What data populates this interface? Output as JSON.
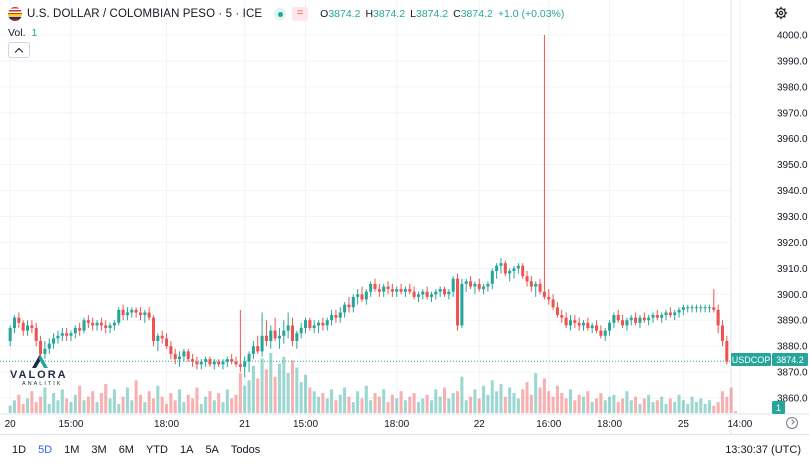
{
  "header": {
    "symbol_title": "U.S. DOLLAR / COLOMBIAN PESO · 5 · ICE",
    "eq_badge": "=",
    "ohlc": [
      {
        "label": "O",
        "value": "3874.2"
      },
      {
        "label": "H",
        "value": "3874.2"
      },
      {
        "label": "L",
        "value": "3874.2"
      },
      {
        "label": "C",
        "value": "3874.2"
      }
    ],
    "change": "+1.0 (+0.03%)"
  },
  "volume": {
    "label": "Vol.",
    "value": "1"
  },
  "logo": {
    "text": "VALORA",
    "sub": "ANALITIK"
  },
  "ranges": [
    "1D",
    "5D",
    "1M",
    "3M",
    "6M",
    "YTD",
    "1A",
    "5A",
    "Todos"
  ],
  "active_range": "5D",
  "clock": "13:30:37 (UTC)",
  "colors": {
    "up": "#26a69a",
    "down": "#ef5350",
    "grid": "#f0f3fa",
    "text": "#131722"
  },
  "chart_data": {
    "type": "candlestick",
    "symbol": "USDCOP",
    "last_price": 3874.2,
    "volume_last": 1,
    "ylim": [
      3855,
      4005
    ],
    "y_ticks": [
      3860,
      3870,
      3880,
      3890,
      3900,
      3910,
      3920,
      3930,
      3940,
      3950,
      3960,
      3970,
      3980,
      3990,
      4000
    ],
    "y_tick_labels": [
      "3860.0",
      "3870.0",
      "3880.0",
      "3890.0",
      "3900.0",
      "3910.0",
      "3920.0",
      "3930.0",
      "3940.0",
      "3950.0",
      "3960.0",
      "3970.0",
      "3980.0",
      "3990.0",
      "4000.0"
    ],
    "x_tick_labels": [
      "20",
      "15:00",
      "18:00",
      "21",
      "15:00",
      "18:00",
      "22",
      "16:00",
      "18:00",
      "25",
      "14:00"
    ],
    "x_tick_index": [
      0,
      14,
      36,
      54,
      68,
      89,
      108,
      124,
      138,
      155,
      168
    ],
    "grid": true,
    "price": [
      [
        3882,
        3888,
        3880,
        3887
      ],
      [
        3887,
        3892,
        3885,
        3891
      ],
      [
        3891,
        3893,
        3887,
        3889
      ],
      [
        3889,
        3890,
        3884,
        3886
      ],
      [
        3886,
        3890,
        3884,
        3888
      ],
      [
        3888,
        3890,
        3885,
        3887
      ],
      [
        3887,
        3889,
        3880,
        3882
      ],
      [
        3882,
        3884,
        3875,
        3877
      ],
      [
        3877,
        3882,
        3875,
        3879
      ],
      [
        3879,
        3883,
        3877,
        3881
      ],
      [
        3881,
        3885,
        3879,
        3883
      ],
      [
        3883,
        3886,
        3881,
        3884
      ],
      [
        3884,
        3887,
        3882,
        3885
      ],
      [
        3885,
        3887,
        3882,
        3884
      ],
      [
        3884,
        3886,
        3882,
        3885
      ],
      [
        3885,
        3888,
        3883,
        3887
      ],
      [
        3887,
        3889,
        3884,
        3886
      ],
      [
        3886,
        3891,
        3885,
        3890
      ],
      [
        3890,
        3892,
        3887,
        3889
      ],
      [
        3889,
        3891,
        3886,
        3888
      ],
      [
        3888,
        3890,
        3886,
        3889
      ],
      [
        3889,
        3891,
        3886,
        3888
      ],
      [
        3888,
        3890,
        3885,
        3887
      ],
      [
        3887,
        3889,
        3885,
        3888
      ],
      [
        3888,
        3890,
        3886,
        3889
      ],
      [
        3889,
        3895,
        3888,
        3894
      ],
      [
        3894,
        3896,
        3890,
        3892
      ],
      [
        3892,
        3895,
        3890,
        3893
      ],
      [
        3893,
        3895,
        3891,
        3894
      ],
      [
        3894,
        3895,
        3891,
        3893
      ],
      [
        3893,
        3895,
        3890,
        3892
      ],
      [
        3892,
        3894,
        3889,
        3893
      ],
      [
        3893,
        3895,
        3890,
        3891
      ],
      [
        3891,
        3892,
        3880,
        3882
      ],
      [
        3882,
        3885,
        3878,
        3884
      ],
      [
        3884,
        3886,
        3881,
        3883
      ],
      [
        3883,
        3885,
        3879,
        3880
      ],
      [
        3880,
        3882,
        3875,
        3877
      ],
      [
        3877,
        3879,
        3873,
        3875
      ],
      [
        3875,
        3878,
        3872,
        3876
      ],
      [
        3876,
        3879,
        3874,
        3878
      ],
      [
        3878,
        3879,
        3874,
        3875
      ],
      [
        3875,
        3877,
        3872,
        3874
      ],
      [
        3874,
        3876,
        3871,
        3873
      ],
      [
        3873,
        3875,
        3871,
        3874
      ],
      [
        3874,
        3876,
        3872,
        3875
      ],
      [
        3875,
        3876,
        3872,
        3873
      ],
      [
        3873,
        3875,
        3871,
        3874
      ],
      [
        3874,
        3875,
        3872,
        3873
      ],
      [
        3873,
        3875,
        3871,
        3874
      ],
      [
        3874,
        3876,
        3872,
        3875
      ],
      [
        3875,
        3877,
        3873,
        3874
      ],
      [
        3874,
        3876,
        3872,
        3873
      ],
      [
        3873,
        3894,
        3870,
        3872
      ],
      [
        3872,
        3876,
        3868,
        3874
      ],
      [
        3874,
        3878,
        3870,
        3877
      ],
      [
        3877,
        3882,
        3875,
        3880
      ],
      [
        3880,
        3884,
        3877,
        3878
      ],
      [
        3878,
        3893,
        3876,
        3884
      ],
      [
        3884,
        3890,
        3880,
        3882
      ],
      [
        3882,
        3888,
        3879,
        3886
      ],
      [
        3886,
        3891,
        3882,
        3883
      ],
      [
        3883,
        3887,
        3879,
        3884
      ],
      [
        3884,
        3890,
        3881,
        3886
      ],
      [
        3886,
        3893,
        3883,
        3888
      ],
      [
        3888,
        3891,
        3880,
        3882
      ],
      [
        3882,
        3886,
        3879,
        3885
      ],
      [
        3885,
        3889,
        3883,
        3887
      ],
      [
        3887,
        3891,
        3885,
        3890
      ],
      [
        3890,
        3891,
        3886,
        3887
      ],
      [
        3887,
        3890,
        3885,
        3888
      ],
      [
        3888,
        3890,
        3885,
        3889
      ],
      [
        3889,
        3891,
        3886,
        3888
      ],
      [
        3888,
        3891,
        3886,
        3890
      ],
      [
        3890,
        3894,
        3888,
        3892
      ],
      [
        3892,
        3894,
        3889,
        3891
      ],
      [
        3891,
        3895,
        3889,
        3893
      ],
      [
        3893,
        3897,
        3891,
        3896
      ],
      [
        3896,
        3899,
        3893,
        3895
      ],
      [
        3895,
        3900,
        3893,
        3899
      ],
      [
        3899,
        3902,
        3896,
        3900
      ],
      [
        3900,
        3903,
        3897,
        3898
      ],
      [
        3898,
        3902,
        3896,
        3901
      ],
      [
        3901,
        3905,
        3899,
        3904
      ],
      [
        3904,
        3906,
        3901,
        3902
      ],
      [
        3902,
        3904,
        3899,
        3901
      ],
      [
        3901,
        3904,
        3899,
        3903
      ],
      [
        3903,
        3905,
        3900,
        3902
      ],
      [
        3902,
        3904,
        3899,
        3901
      ],
      [
        3901,
        3903,
        3899,
        3902
      ],
      [
        3902,
        3904,
        3900,
        3901
      ],
      [
        3901,
        3903,
        3899,
        3902
      ],
      [
        3902,
        3904,
        3900,
        3901
      ],
      [
        3901,
        3903,
        3898,
        3899
      ],
      [
        3899,
        3901,
        3897,
        3900
      ],
      [
        3900,
        3902,
        3898,
        3901
      ],
      [
        3901,
        3903,
        3898,
        3899
      ],
      [
        3899,
        3901,
        3897,
        3900
      ],
      [
        3900,
        3902,
        3898,
        3901
      ],
      [
        3901,
        3903,
        3899,
        3902
      ],
      [
        3902,
        3903,
        3899,
        3900
      ],
      [
        3900,
        3902,
        3898,
        3901
      ],
      [
        3901,
        3907,
        3899,
        3906
      ],
      [
        3906,
        3908,
        3886,
        3888
      ],
      [
        3888,
        3906,
        3887,
        3904
      ],
      [
        3904,
        3906,
        3901,
        3905
      ],
      [
        3905,
        3907,
        3902,
        3903
      ],
      [
        3903,
        3905,
        3900,
        3904
      ],
      [
        3904,
        3906,
        3901,
        3902
      ],
      [
        3902,
        3904,
        3900,
        3903
      ],
      [
        3903,
        3905,
        3901,
        3904
      ],
      [
        3904,
        3910,
        3902,
        3909
      ],
      [
        3909,
        3912,
        3906,
        3911
      ],
      [
        3911,
        3914,
        3908,
        3912
      ],
      [
        3912,
        3913,
        3907,
        3908
      ],
      [
        3908,
        3910,
        3905,
        3909
      ],
      [
        3909,
        3911,
        3906,
        3910
      ],
      [
        3910,
        3912,
        3908,
        3911
      ],
      [
        3911,
        3912,
        3906,
        3907
      ],
      [
        3907,
        3909,
        3903,
        3905
      ],
      [
        3905,
        3907,
        3901,
        3903
      ],
      [
        3903,
        3905,
        3899,
        3904
      ],
      [
        3904,
        3906,
        3900,
        3901
      ],
      [
        3901,
        4000,
        3898,
        3899
      ],
      [
        3899,
        3902,
        3896,
        3898
      ],
      [
        3898,
        3900,
        3894,
        3895
      ],
      [
        3895,
        3897,
        3891,
        3892
      ],
      [
        3892,
        3894,
        3889,
        3891
      ],
      [
        3891,
        3893,
        3887,
        3888
      ],
      [
        3888,
        3892,
        3886,
        3890
      ],
      [
        3890,
        3892,
        3887,
        3889
      ],
      [
        3889,
        3891,
        3886,
        3888
      ],
      [
        3888,
        3890,
        3886,
        3889
      ],
      [
        3889,
        3891,
        3886,
        3887
      ],
      [
        3887,
        3889,
        3885,
        3888
      ],
      [
        3888,
        3890,
        3885,
        3886
      ],
      [
        3886,
        3888,
        3883,
        3884
      ],
      [
        3884,
        3887,
        3882,
        3886
      ],
      [
        3886,
        3890,
        3884,
        3889
      ],
      [
        3889,
        3893,
        3887,
        3892
      ],
      [
        3892,
        3894,
        3889,
        3890
      ],
      [
        3890,
        3892,
        3887,
        3888
      ],
      [
        3888,
        3891,
        3886,
        3890
      ],
      [
        3890,
        3892,
        3888,
        3891
      ],
      [
        3891,
        3893,
        3888,
        3889
      ],
      [
        3889,
        3892,
        3887,
        3891
      ],
      [
        3891,
        3893,
        3889,
        3890
      ],
      [
        3890,
        3892,
        3888,
        3891
      ],
      [
        3891,
        3893,
        3889,
        3892
      ],
      [
        3892,
        3894,
        3890,
        3891
      ],
      [
        3891,
        3893,
        3889,
        3892
      ],
      [
        3892,
        3894,
        3890,
        3893
      ],
      [
        3893,
        3895,
        3891,
        3892
      ],
      [
        3892,
        3894,
        3890,
        3893
      ],
      [
        3893,
        3895,
        3891,
        3894
      ],
      [
        3894,
        3896,
        3892,
        3895
      ],
      [
        3895,
        3896,
        3893,
        3895
      ],
      [
        3895,
        3896,
        3893,
        3895
      ],
      [
        3895,
        3896,
        3893,
        3895
      ],
      [
        3895,
        3896,
        3893,
        3895
      ],
      [
        3895,
        3896,
        3893,
        3895
      ],
      [
        3895,
        3896,
        3893,
        3895
      ],
      [
        3895,
        3902,
        3893,
        3894
      ],
      [
        3894,
        3896,
        3885,
        3888
      ],
      [
        3888,
        3890,
        3880,
        3882
      ],
      [
        3882,
        3884,
        3873,
        3874
      ]
    ],
    "volume": [
      4,
      7,
      10,
      5,
      8,
      12,
      6,
      9,
      14,
      5,
      11,
      7,
      13,
      8,
      6,
      10,
      15,
      7,
      9,
      12,
      6,
      11,
      16,
      8,
      13,
      5,
      9,
      14,
      7,
      18,
      10,
      6,
      12,
      8,
      15,
      9,
      5,
      11,
      7,
      13,
      6,
      10,
      8,
      14,
      5,
      9,
      12,
      7,
      11,
      6,
      13,
      8,
      10,
      22,
      15,
      18,
      26,
      19,
      30,
      24,
      33,
      20,
      27,
      31,
      22,
      29,
      25,
      17,
      21,
      14,
      12,
      9,
      11,
      8,
      13,
      7,
      10,
      14,
      9,
      6,
      12,
      8,
      15,
      7,
      11,
      9,
      13,
      6,
      10,
      8,
      12,
      7,
      9,
      11,
      6,
      8,
      10,
      7,
      13,
      9,
      14,
      8,
      11,
      12,
      20,
      7,
      9,
      13,
      8,
      15,
      10,
      18,
      12,
      16,
      9,
      14,
      11,
      8,
      13,
      17,
      10,
      22,
      14,
      19,
      12,
      9,
      15,
      11,
      8,
      13,
      7,
      10,
      9,
      12,
      6,
      8,
      11,
      7,
      9,
      10,
      6,
      8,
      12,
      7,
      9,
      5,
      8,
      10,
      6,
      7,
      9,
      5,
      8,
      6,
      10,
      7,
      5,
      9,
      6,
      8,
      5,
      7,
      4,
      6,
      12,
      9,
      14,
      1
    ]
  }
}
